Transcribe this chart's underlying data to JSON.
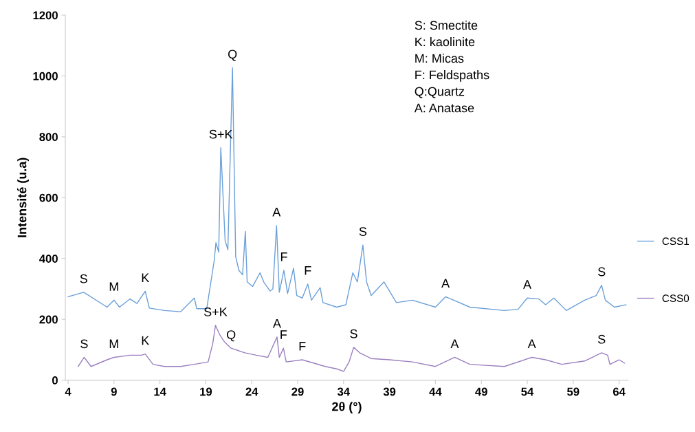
{
  "chart_data": {
    "type": "line",
    "xlabel": "2θ (°)",
    "ylabel": "Intensité (u.a)",
    "xlim": [
      3.7,
      65
    ],
    "xticks": [
      4,
      9,
      14,
      19,
      24,
      29,
      34,
      39,
      44,
      49,
      54,
      59,
      64
    ],
    "ylim": [
      0,
      1200
    ],
    "yticks": [
      0,
      200,
      400,
      600,
      800,
      1000,
      1200
    ],
    "grid": false,
    "marker": "none",
    "line_style": "solid",
    "series": [
      {
        "name": "CSS1",
        "color": "#6a9fd8",
        "x": [
          4,
          5.7,
          8.25,
          9,
          9.6,
          10.75,
          11.5,
          12.4,
          12.85,
          14.5,
          16.25,
          17.75,
          18.0,
          19.1,
          19.9,
          20.1,
          20.4,
          20.63,
          21.1,
          21.4,
          21.9,
          22.25,
          22.6,
          23.0,
          23.3,
          23.5,
          24.1,
          24.9,
          25.3,
          26.0,
          26.3,
          26.7,
          27.0,
          27.5,
          27.9,
          28.55,
          28.9,
          29.5,
          30.1,
          30.5,
          31.45,
          31.75,
          33.25,
          34.25,
          35.0,
          35.5,
          36.1,
          36.5,
          37.0,
          38.4,
          39.75,
          41.5,
          44.0,
          45.1,
          46.0,
          47.75,
          51.5,
          53.0,
          54.0,
          55.25,
          56.0,
          56.9,
          58.25,
          60.25,
          61.5,
          62.1,
          62.5,
          63.5,
          64.75
        ],
        "values": [
          274,
          289,
          240,
          263,
          240,
          267,
          252,
          292,
          237,
          229,
          225,
          270,
          235,
          235,
          391,
          452,
          421,
          764,
          459,
          429,
          1027,
          406,
          361,
          346,
          489,
          323,
          308,
          353,
          323,
          293,
          300,
          508,
          289,
          361,
          285,
          368,
          278,
          270,
          316,
          263,
          304,
          255,
          240,
          248,
          353,
          323,
          444,
          323,
          278,
          323,
          255,
          263,
          240,
          274,
          263,
          240,
          229,
          233,
          270,
          267,
          248,
          270,
          229,
          263,
          278,
          312,
          263,
          240,
          248
        ]
      },
      {
        "name": "CSS0",
        "color": "#9b7fc0",
        "x": [
          5.1,
          5.75,
          6.5,
          8.25,
          9.0,
          10.75,
          12.0,
          12.4,
          13.25,
          14.5,
          16.25,
          17.75,
          19.25,
          19.75,
          20.05,
          20.5,
          21.0,
          21.75,
          23.25,
          24.5,
          25.75,
          26.75,
          27.0,
          27.45,
          27.75,
          29.5,
          32.0,
          33.25,
          34.0,
          34.6,
          35.1,
          35.75,
          37.0,
          39.0,
          41.5,
          44.0,
          46.1,
          47.75,
          51.5,
          54.5,
          56.0,
          57.75,
          60.25,
          62.1,
          62.75,
          63.0,
          64.0,
          64.6
        ],
        "values": [
          45,
          75,
          45,
          67,
          75,
          82,
          82,
          86,
          52,
          45,
          45,
          52,
          60,
          120,
          180,
          150,
          127,
          105,
          90,
          82,
          75,
          142,
          75,
          105,
          60,
          67,
          45,
          37,
          29,
          60,
          108,
          90,
          71,
          67,
          60,
          45,
          75,
          52,
          45,
          75,
          67,
          52,
          63,
          90,
          82,
          52,
          67,
          56
        ]
      }
    ],
    "annotations": [
      "S: Smectite\nK: kaolinite\nM: Micas\nF: Feldspaths\nQ:Quartz\nA: Anatase",
      {
        "text": "S",
        "x": 5.7,
        "y": 289
      },
      {
        "text": "M",
        "x": 9,
        "y": 263
      },
      {
        "text": "K",
        "x": 12.4,
        "y": 292
      },
      {
        "text": "S+K",
        "x": 20.63,
        "y": 764
      },
      {
        "text": "Q",
        "x": 21.9,
        "y": 1027
      },
      {
        "text": "A",
        "x": 26.7,
        "y": 508
      },
      {
        "text": "F",
        "x": 27.5,
        "y": 361
      },
      {
        "text": "F",
        "x": 30.1,
        "y": 316
      },
      {
        "text": "S",
        "x": 36.1,
        "y": 444
      },
      {
        "text": "A",
        "x": 45.1,
        "y": 274
      },
      {
        "text": "A",
        "x": 54.0,
        "y": 270
      },
      {
        "text": "S",
        "x": 62.1,
        "y": 312
      },
      {
        "text": "S",
        "x": 5.75,
        "y": 75
      },
      {
        "text": "M",
        "x": 9.0,
        "y": 75
      },
      {
        "text": "K",
        "x": 12.4,
        "y": 86
      },
      {
        "text": "S+K",
        "x": 20.05,
        "y": 180
      },
      {
        "text": "Q",
        "x": 21.75,
        "y": 105
      },
      {
        "text": "A",
        "x": 26.75,
        "y": 142
      },
      {
        "text": "F",
        "x": 27.45,
        "y": 105
      },
      {
        "text": "F",
        "x": 29.5,
        "y": 67
      },
      {
        "text": "S",
        "x": 35.1,
        "y": 108
      },
      {
        "text": "A",
        "x": 46.1,
        "y": 75
      },
      {
        "text": "A",
        "x": 54.5,
        "y": 75
      },
      {
        "text": "S",
        "x": 62.1,
        "y": 90
      }
    ],
    "legend": "right"
  }
}
